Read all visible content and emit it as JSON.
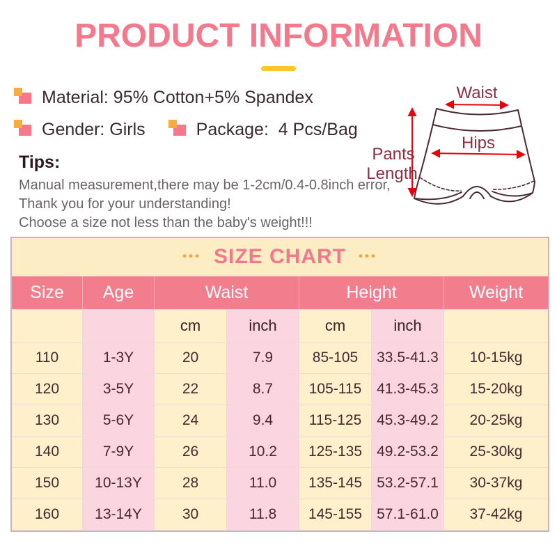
{
  "title": "PRODUCT INFORMATION",
  "specs": {
    "material": "Material: 95% Cotton+5% Spandex",
    "gender": "Gender: Girls",
    "package": "Package:  4 Pcs/Bag"
  },
  "tips": {
    "heading": "Tips:",
    "lines": [
      "Manual measurement,there may be 1-2cm/0.4-0.8inch error,",
      "Thank you for your understanding!",
      "Choose a size not less than the baby's weight!!!"
    ]
  },
  "diagram": {
    "waist_label": "Waist",
    "hips_label": "Hips",
    "pants_length_line1": "Pants",
    "pants_length_line2": "Length"
  },
  "size_chart": {
    "banner": "SIZE CHART",
    "dots": "•••",
    "columns": [
      "Size",
      "Age",
      "Waist",
      "Height",
      "Weight"
    ],
    "units": [
      "cm",
      "inch",
      "cm",
      "inch"
    ],
    "rows": [
      [
        "110",
        "1-3Y",
        "20",
        "7.9",
        "85-105",
        "33.5-41.3",
        "10-15kg"
      ],
      [
        "120",
        "3-5Y",
        "22",
        "8.7",
        "105-115",
        "41.3-45.3",
        "15-20kg"
      ],
      [
        "130",
        "5-6Y",
        "24",
        "9.4",
        "115-125",
        "45.3-49.2",
        "20-25kg"
      ],
      [
        "140",
        "7-9Y",
        "26",
        "10.2",
        "125-135",
        "49.2-53.2",
        "25-30kg"
      ],
      [
        "150",
        "10-13Y",
        "28",
        "11.0",
        "135-145",
        "53.2-57.1",
        "30-37kg"
      ],
      [
        "160",
        "13-14Y",
        "30",
        "11.8",
        "145-155",
        "57.1-61.0",
        "37-42kg"
      ]
    ]
  },
  "colors": {
    "accent_pink": "#f4798c",
    "accent_yellow": "#ffc52e",
    "bullet_pink": "#f5798a",
    "bullet_orange": "#f8ac40",
    "header_pink": "#f27d8d",
    "banner_cream": "#fcedc4",
    "cell_cream": "#fdf0ca",
    "cell_pink": "#fbd5df",
    "arrow_red": "#e8000d",
    "diagram_line": "#4b2b33",
    "diagram_label": "#8b3144"
  }
}
